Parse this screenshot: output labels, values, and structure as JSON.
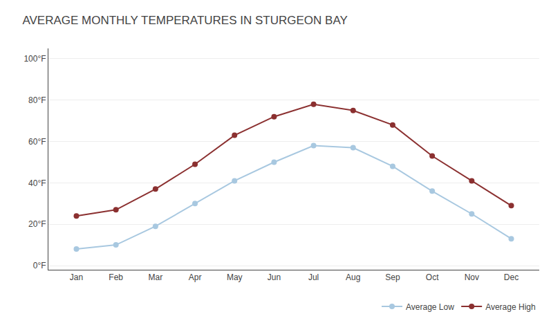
{
  "chart_data": {
    "type": "line",
    "title": "AVERAGE MONTHLY TEMPERATURES IN STURGEON BAY",
    "categories": [
      "Jan",
      "Feb",
      "Mar",
      "Apr",
      "May",
      "Jun",
      "Jul",
      "Aug",
      "Sep",
      "Oct",
      "Nov",
      "Dec"
    ],
    "series": [
      {
        "name": "Average Low",
        "color": "#a8c8e0",
        "marker": "circle",
        "line_style": "solid",
        "values": [
          8,
          10,
          19,
          30,
          41,
          50,
          58,
          57,
          48,
          36,
          25,
          13
        ]
      },
      {
        "name": "Average High",
        "color": "#8b3030",
        "marker": "circle",
        "line_style": "solid",
        "values": [
          24,
          27,
          37,
          49,
          63,
          72,
          78,
          75,
          68,
          53,
          41,
          29
        ]
      }
    ],
    "ylim": [
      -2,
      105
    ],
    "yticks": [
      {
        "value": 0,
        "label": "0°F"
      },
      {
        "value": 20,
        "label": "20°F"
      },
      {
        "value": 40,
        "label": "40°F"
      },
      {
        "value": 60,
        "label": "60°F"
      },
      {
        "value": 80,
        "label": "80°F"
      },
      {
        "value": 100,
        "label": "100°F"
      }
    ],
    "grid": true,
    "legend": "lower right"
  }
}
